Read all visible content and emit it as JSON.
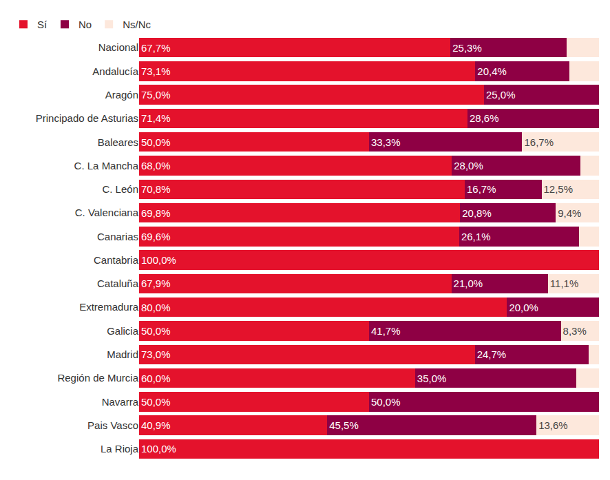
{
  "chart_data": {
    "type": "bar",
    "orientation": "horizontal",
    "stacked": true,
    "data_labels": true,
    "tick_labels": "y",
    "grid": false,
    "legend": "top left",
    "xlim": [
      0,
      100
    ],
    "categories": [
      "Nacional",
      "Andalucía",
      "Aragón",
      "Principado de Asturias",
      "Baleares",
      "C. La Mancha",
      "C. León",
      "C. Valenciana",
      "Canarias",
      "Cantabria",
      "Cataluña",
      "Extremadura",
      "Galicia",
      "Madrid",
      "Región de Murcia",
      "Navarra",
      "Pais Vasco",
      "La Rioja"
    ],
    "series": [
      {
        "name": "Sí",
        "color": "#e4122c",
        "values": [
          67.7,
          73.1,
          75.0,
          71.4,
          50.0,
          68.0,
          70.8,
          69.8,
          69.6,
          100.0,
          67.9,
          80.0,
          50.0,
          73.0,
          60.0,
          50.0,
          40.9,
          100.0
        ],
        "value_labels": [
          "67,7%",
          "73,1%",
          "75,0%",
          "71,4%",
          "50,0%",
          "68,0%",
          "70,8%",
          "69,8%",
          "69,6%",
          "100,0%",
          "67,9%",
          "80,0%",
          "50,0%",
          "73,0%",
          "60,0%",
          "50,0%",
          "40,9%",
          "100,0%"
        ]
      },
      {
        "name": "No",
        "color": "#8e0044",
        "values": [
          25.3,
          20.4,
          25.0,
          28.6,
          33.3,
          28.0,
          16.7,
          20.8,
          26.1,
          0,
          21.0,
          20.0,
          41.7,
          24.7,
          35.0,
          50.0,
          45.5,
          0
        ],
        "value_labels": [
          "25,3%",
          "20,4%",
          "25,0%",
          "28,6%",
          "33,3%",
          "28,0%",
          "16,7%",
          "20,8%",
          "26,1%",
          null,
          "21,0%",
          "20,0%",
          "41,7%",
          "24,7%",
          "35,0%",
          "50,0%",
          "45,5%",
          null
        ]
      },
      {
        "name": "Ns/Nc",
        "color": "#fde8dc",
        "values": [
          7.0,
          6.5,
          0,
          0,
          16.7,
          4.0,
          12.5,
          9.4,
          4.3,
          0,
          11.1,
          0,
          8.3,
          2.3,
          5.0,
          0,
          13.6,
          0
        ],
        "value_labels": [
          null,
          null,
          null,
          null,
          "16,7%",
          null,
          "12,5%",
          "9,4%",
          null,
          null,
          "11,1%",
          null,
          "8,3%",
          null,
          null,
          null,
          "13,6%",
          null
        ]
      }
    ]
  }
}
